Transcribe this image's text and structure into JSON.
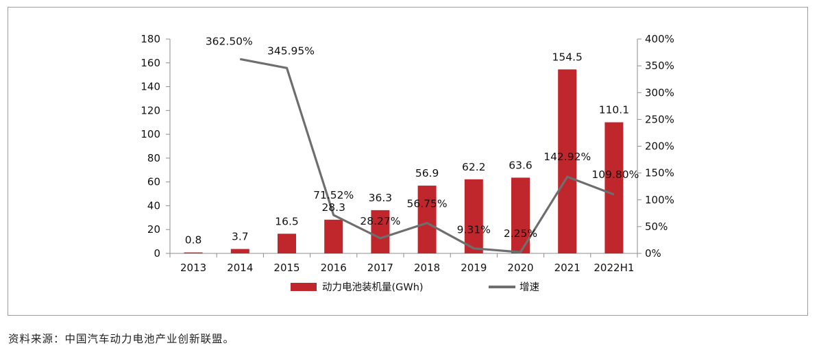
{
  "chart_data": {
    "type": "bar",
    "categories": [
      "2013",
      "2014",
      "2015",
      "2016",
      "2017",
      "2018",
      "2019",
      "2020",
      "2021",
      "2022H1"
    ],
    "series": [
      {
        "name": "动力电池装机量(GWh)",
        "type": "bar",
        "axis": "left",
        "color": "#c0272d",
        "values": [
          0.8,
          3.7,
          16.5,
          28.3,
          36.3,
          56.9,
          62.2,
          63.6,
          154.5,
          110.1
        ],
        "labels": [
          "0.8",
          "3.7",
          "16.5",
          "28.3",
          "36.3",
          "56.9",
          "62.2",
          "63.6",
          "154.5",
          "110.1"
        ]
      },
      {
        "name": "增速",
        "type": "line",
        "axis": "right",
        "color": "#6e6e6e",
        "values": [
          null,
          362.5,
          345.95,
          71.52,
          28.27,
          56.75,
          9.31,
          2.25,
          142.92,
          109.8
        ],
        "labels": [
          null,
          "362.50%",
          "345.95%",
          "71.52%",
          "28.27%",
          "56.75%",
          "9.31%",
          "2.25%",
          "142.92%",
          "109.80%"
        ]
      }
    ],
    "y_left": {
      "ylim": [
        0,
        180
      ],
      "ticks": [
        "0",
        "20",
        "40",
        "60",
        "80",
        "100",
        "120",
        "140",
        "160",
        "180"
      ]
    },
    "y_right": {
      "ylim": [
        0,
        400
      ],
      "ticks": [
        "0%",
        "50%",
        "100%",
        "150%",
        "200%",
        "250%",
        "300%",
        "350%",
        "400%"
      ]
    },
    "grid": false,
    "legend_position": "bottom"
  },
  "source_text": "资料来源：中国汽车动力电池产业创新联盟。"
}
